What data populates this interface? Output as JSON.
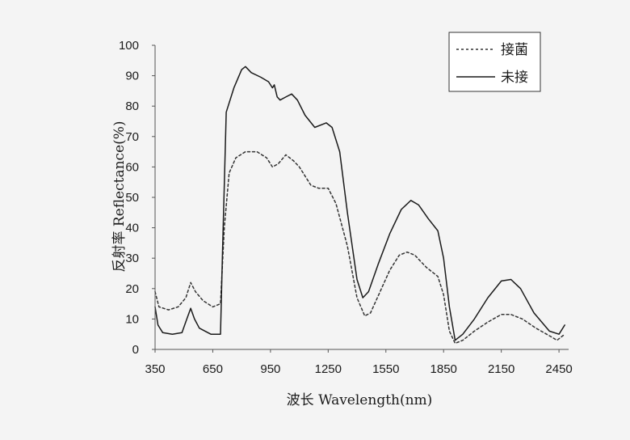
{
  "chart_data": {
    "type": "line",
    "xlabel": "波长 Wavelength(nm)",
    "ylabel": "反射率 Reflectance(%)",
    "xlim": [
      350,
      2500
    ],
    "ylim": [
      0,
      100
    ],
    "x_ticks": [
      "350",
      "650",
      "950",
      "1250",
      "1550",
      "1850",
      "2150",
      "2450"
    ],
    "y_ticks": [
      "0",
      "10",
      "20",
      "30",
      "40",
      "50",
      "60",
      "70",
      "80",
      "90",
      "100"
    ],
    "grid": false,
    "legend_position": "top-right",
    "series": [
      {
        "name": "接菌",
        "line_style": "dashed",
        "color": "#333333",
        "points": [
          [
            350,
            19
          ],
          [
            370,
            14
          ],
          [
            420,
            13
          ],
          [
            470,
            14
          ],
          [
            510,
            17
          ],
          [
            535,
            22
          ],
          [
            560,
            19
          ],
          [
            600,
            16
          ],
          [
            650,
            14
          ],
          [
            690,
            15
          ],
          [
            710,
            40
          ],
          [
            735,
            58
          ],
          [
            770,
            63
          ],
          [
            820,
            65
          ],
          [
            880,
            65
          ],
          [
            930,
            63
          ],
          [
            960,
            60
          ],
          [
            990,
            61
          ],
          [
            1030,
            64
          ],
          [
            1070,
            62
          ],
          [
            1100,
            60
          ],
          [
            1160,
            54
          ],
          [
            1200,
            53
          ],
          [
            1250,
            53
          ],
          [
            1290,
            48
          ],
          [
            1350,
            34
          ],
          [
            1400,
            17
          ],
          [
            1440,
            11
          ],
          [
            1470,
            12
          ],
          [
            1520,
            19
          ],
          [
            1570,
            26
          ],
          [
            1620,
            31
          ],
          [
            1660,
            32
          ],
          [
            1700,
            31
          ],
          [
            1760,
            27
          ],
          [
            1820,
            24
          ],
          [
            1850,
            18
          ],
          [
            1880,
            6
          ],
          [
            1910,
            2
          ],
          [
            1950,
            3
          ],
          [
            2010,
            6
          ],
          [
            2080,
            9
          ],
          [
            2150,
            11.5
          ],
          [
            2200,
            11.5
          ],
          [
            2260,
            10
          ],
          [
            2330,
            7
          ],
          [
            2400,
            4.5
          ],
          [
            2440,
            3
          ],
          [
            2480,
            5
          ]
        ]
      },
      {
        "name": "未接",
        "line_style": "solid",
        "color": "#1a1a1a",
        "points": [
          [
            350,
            14
          ],
          [
            365,
            8
          ],
          [
            390,
            5.5
          ],
          [
            440,
            5
          ],
          [
            490,
            5.5
          ],
          [
            515,
            10
          ],
          [
            535,
            13.5
          ],
          [
            555,
            10
          ],
          [
            580,
            7
          ],
          [
            640,
            5
          ],
          [
            690,
            5
          ],
          [
            700,
            30
          ],
          [
            720,
            78
          ],
          [
            760,
            86
          ],
          [
            800,
            92
          ],
          [
            820,
            93
          ],
          [
            850,
            91
          ],
          [
            900,
            89.5
          ],
          [
            940,
            88
          ],
          [
            960,
            86
          ],
          [
            970,
            87
          ],
          [
            985,
            83
          ],
          [
            1000,
            82
          ],
          [
            1030,
            83
          ],
          [
            1060,
            84
          ],
          [
            1090,
            82
          ],
          [
            1130,
            77
          ],
          [
            1180,
            73
          ],
          [
            1240,
            74.5
          ],
          [
            1270,
            73
          ],
          [
            1310,
            65
          ],
          [
            1350,
            45
          ],
          [
            1400,
            23
          ],
          [
            1430,
            17
          ],
          [
            1460,
            19
          ],
          [
            1510,
            28
          ],
          [
            1570,
            38
          ],
          [
            1630,
            46
          ],
          [
            1680,
            49
          ],
          [
            1720,
            47.5
          ],
          [
            1770,
            43
          ],
          [
            1820,
            39
          ],
          [
            1850,
            30
          ],
          [
            1880,
            14
          ],
          [
            1910,
            3
          ],
          [
            1950,
            5
          ],
          [
            2010,
            10
          ],
          [
            2080,
            17
          ],
          [
            2150,
            22.5
          ],
          [
            2200,
            23
          ],
          [
            2250,
            20
          ],
          [
            2320,
            12
          ],
          [
            2400,
            6
          ],
          [
            2450,
            5
          ],
          [
            2480,
            8
          ]
        ]
      }
    ]
  }
}
